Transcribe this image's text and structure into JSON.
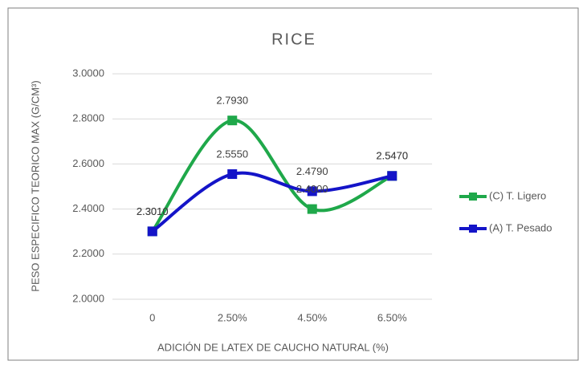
{
  "chart_data": {
    "type": "line",
    "title": "RICE",
    "x_label": "ADICIÓN DE LATEX DE CAUCHO NATURAL (%)",
    "y_label": "PESO ESPECIFICO TEORICO MAX (G/CM³)",
    "categories": [
      "0",
      "2.50%",
      "4.50%",
      "6.50%"
    ],
    "series": [
      {
        "name": "(C) T. Ligero",
        "color": "#1fa84a",
        "values": [
          2.301,
          2.793,
          2.4,
          2.547
        ],
        "value_labels": [
          "2.3010",
          "2.7930",
          "2.4000",
          "2.5470"
        ]
      },
      {
        "name": "(A) T. Pesado",
        "color": "#1414c8",
        "values": [
          2.301,
          2.555,
          2.479,
          2.547
        ],
        "value_labels": [
          "2.3010",
          "2.5550",
          "2.4790",
          "2.5470"
        ]
      }
    ],
    "ylim": [
      2,
      3
    ],
    "yticks": [
      {
        "value": 2,
        "label": "2.0000"
      },
      {
        "value": 2.2,
        "label": "2.2000"
      },
      {
        "value": 2.4,
        "label": "2.4000"
      },
      {
        "value": 2.6,
        "label": "2.6000"
      },
      {
        "value": 2.8,
        "label": "2.8000"
      },
      {
        "value": 3,
        "label": "3.0000"
      }
    ],
    "grid": true,
    "smooth": true,
    "legend": "right"
  }
}
